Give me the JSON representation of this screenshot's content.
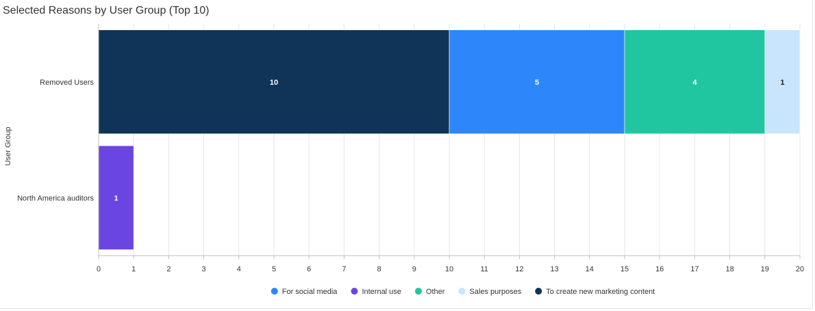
{
  "chart_data": {
    "type": "bar",
    "orientation": "horizontal",
    "stacked": true,
    "title": "Selected Reasons by User Group (Top 10)",
    "ylabel": "User Group",
    "xlabel": "",
    "categories": [
      "Removed Users",
      "North America auditors"
    ],
    "xlim": [
      0,
      20
    ],
    "xticks": [
      0,
      1,
      2,
      3,
      4,
      5,
      6,
      7,
      8,
      9,
      10,
      11,
      12,
      13,
      14,
      15,
      16,
      17,
      18,
      19,
      20
    ],
    "grid": true,
    "legend_position": "bottom",
    "legend_order": [
      "For social media",
      "Internal use",
      "Other",
      "Sales purposes",
      "To create new marketing content"
    ],
    "stack_order": [
      "To create new marketing content",
      "For social media",
      "Other",
      "Sales purposes",
      "Internal use"
    ],
    "series": [
      {
        "name": "For social media",
        "color": "#2d87fb",
        "label_color": "#ffffff",
        "values": [
          5,
          0
        ]
      },
      {
        "name": "Internal use",
        "color": "#6b45e1",
        "label_color": "#ffffff",
        "values": [
          0,
          1
        ]
      },
      {
        "name": "Other",
        "color": "#20c6a0",
        "label_color": "#ffffff",
        "values": [
          4,
          0
        ]
      },
      {
        "name": "Sales purposes",
        "color": "#c8e5fd",
        "label_color": "#1a1a1a",
        "values": [
          1,
          0
        ]
      },
      {
        "name": "To create new marketing content",
        "color": "#103358",
        "label_color": "#ffffff",
        "values": [
          10,
          0
        ]
      }
    ]
  }
}
